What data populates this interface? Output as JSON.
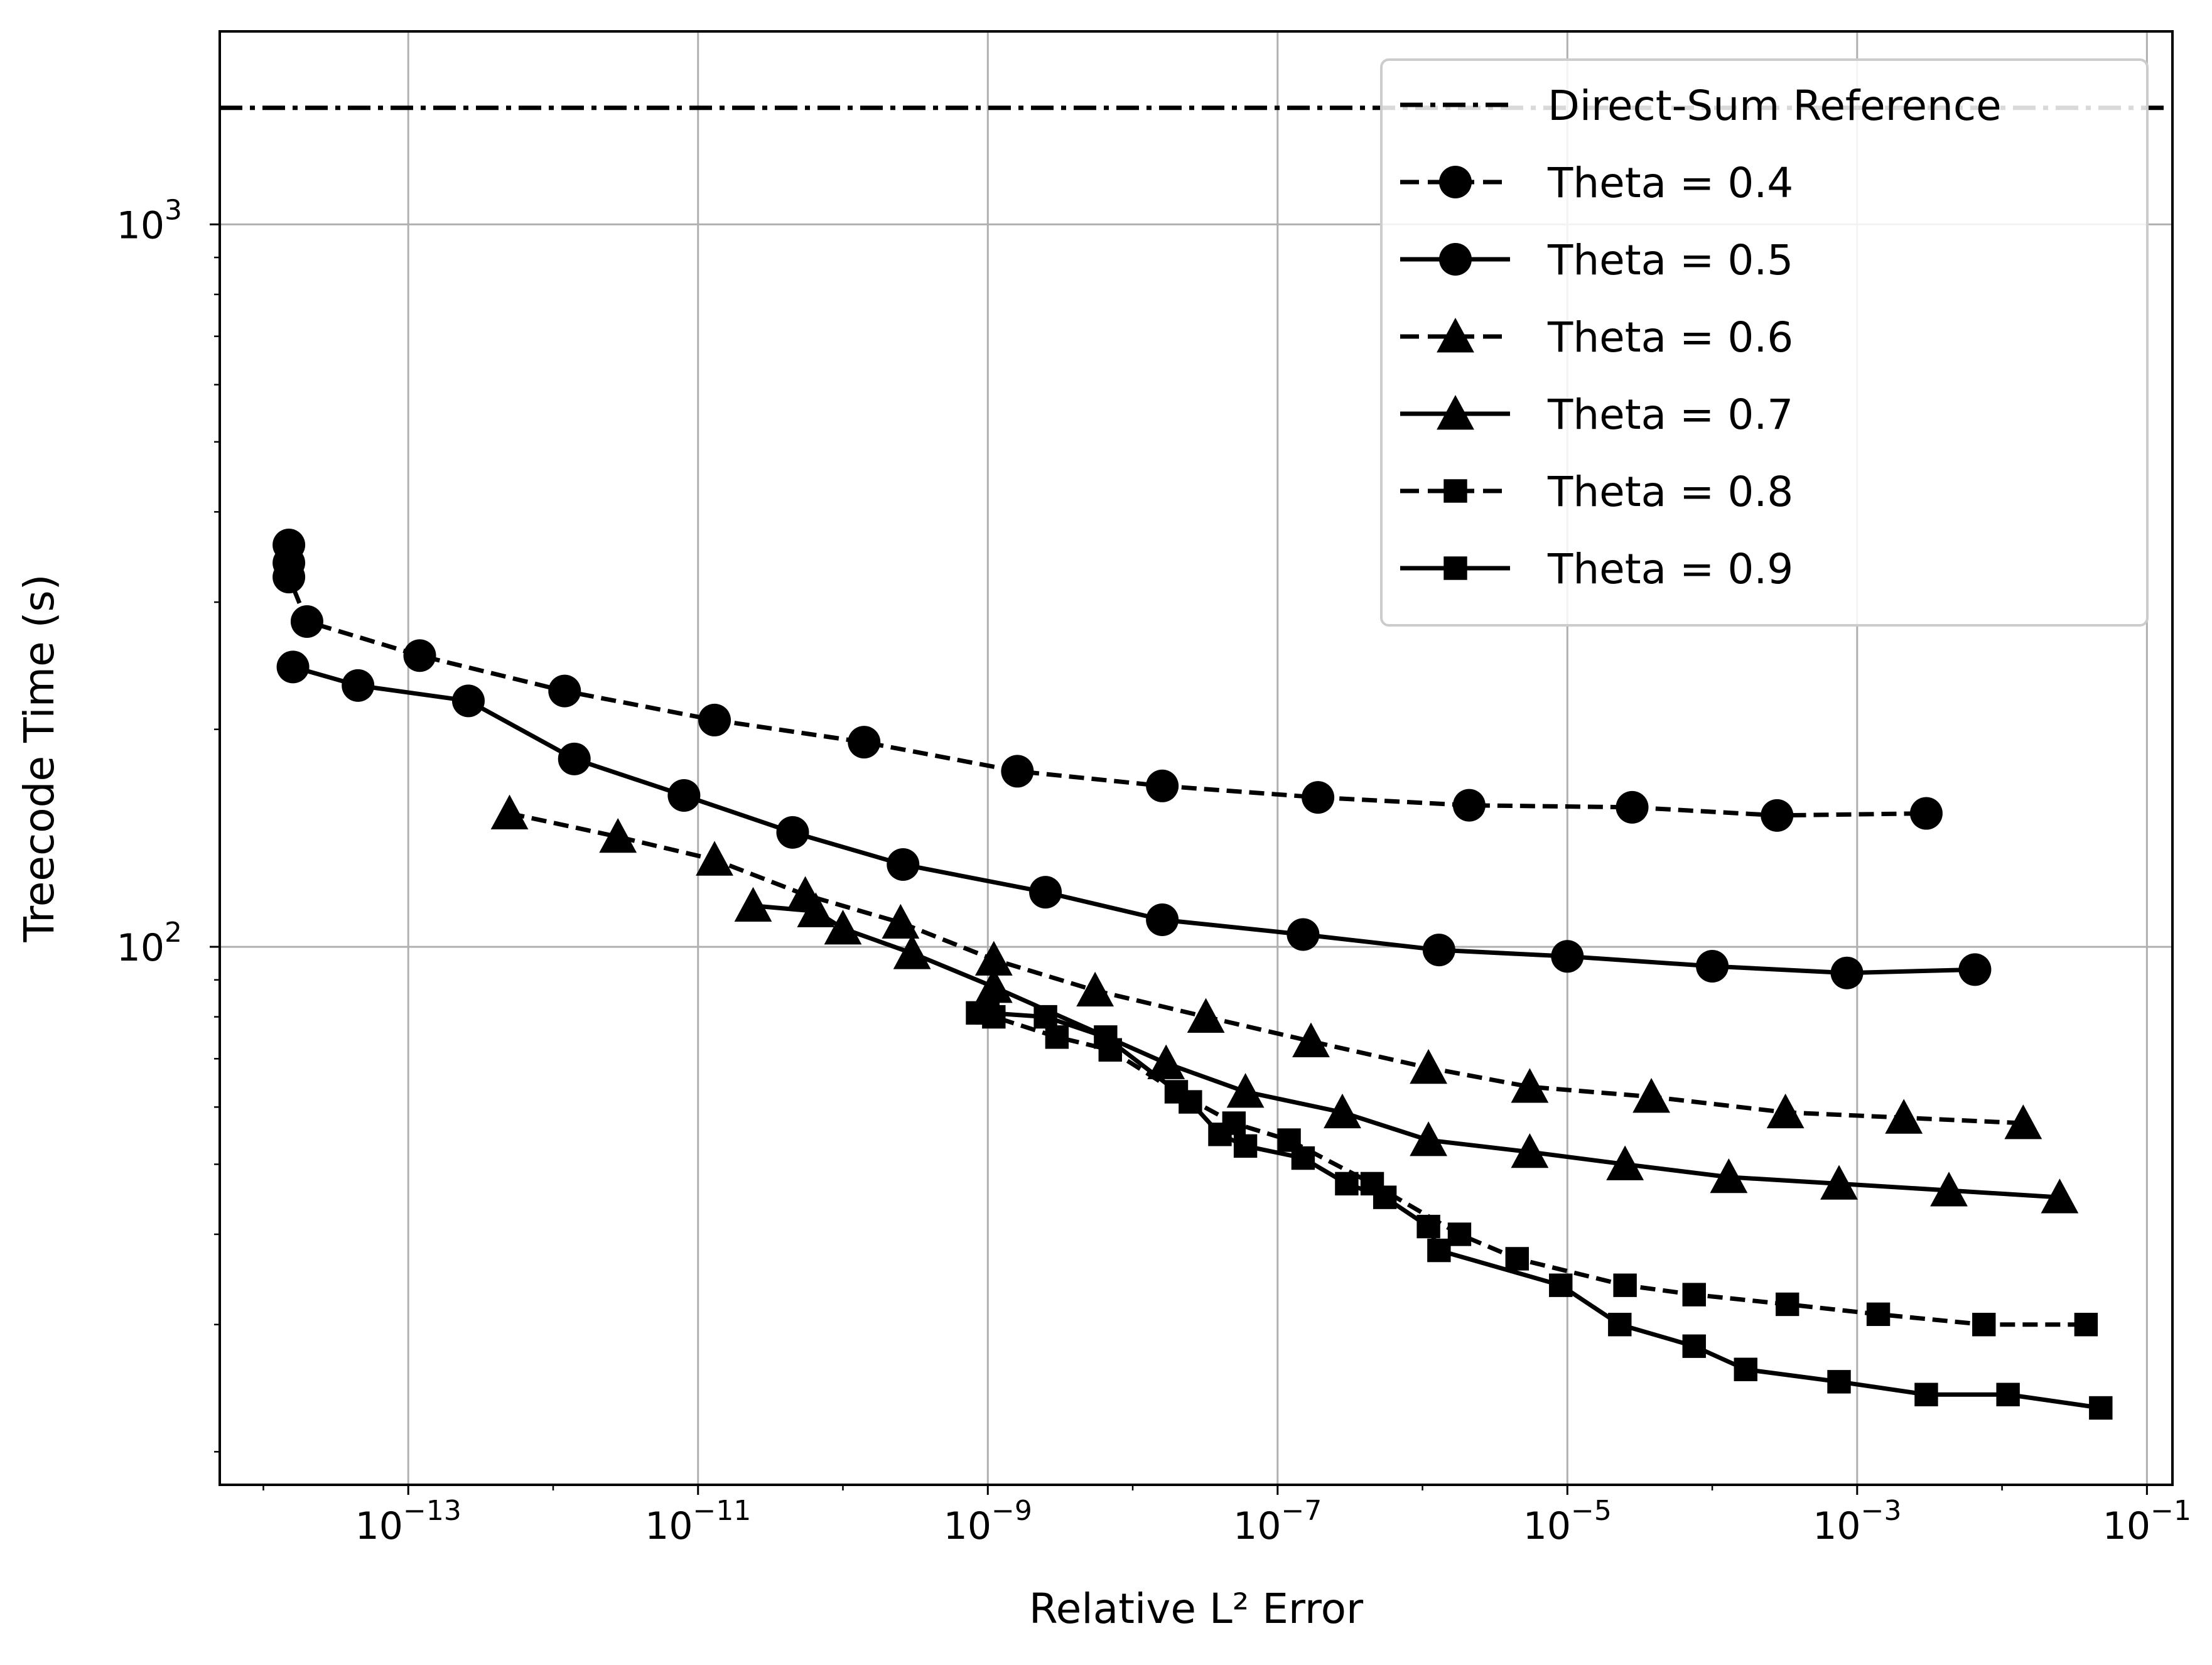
{
  "chart_data": {
    "type": "line",
    "x_scale": "log",
    "y_scale": "log",
    "xlabel": "Relative L² Error",
    "ylabel": "Treecode Time (s)",
    "xlim": [
      5e-15,
      0.15
    ],
    "ylim": [
      18,
      1850
    ],
    "grid": true,
    "legend_placement": "upper right",
    "x_tick_labels": [
      {
        "value": 1e-13,
        "base": "10",
        "exp": "−13"
      },
      {
        "value": 1e-11,
        "base": "10",
        "exp": "−11"
      },
      {
        "value": 1e-09,
        "base": "10",
        "exp": "−9"
      },
      {
        "value": 1e-07,
        "base": "10",
        "exp": "−7"
      },
      {
        "value": 1e-05,
        "base": "10",
        "exp": "−5"
      },
      {
        "value": 0.001,
        "base": "10",
        "exp": "−3"
      },
      {
        "value": 0.1,
        "base": "10",
        "exp": "−1"
      }
    ],
    "y_tick_labels": [
      {
        "value": 100,
        "base": "10",
        "exp": "2"
      },
      {
        "value": 1000,
        "base": "10",
        "exp": "3"
      }
    ],
    "reference": {
      "name": "Direct-Sum Reference",
      "value": 1450,
      "style": "dashdot"
    },
    "series": [
      {
        "name": "Theta = 0.4",
        "marker": "circle",
        "linestyle": "dashed",
        "x": [
          1.5e-14,
          1.5e-14,
          1.5e-14,
          2e-14,
          1.2e-13,
          1.2e-12,
          1.3e-11,
          1.4e-10,
          1.6e-09,
          1.6e-08,
          1.9e-07,
          2.1e-06,
          2.8e-05,
          0.00028,
          0.003
        ],
        "y": [
          360,
          340,
          325,
          282,
          253,
          226,
          206,
          192,
          175,
          167,
          161,
          157,
          156,
          152,
          153
        ]
      },
      {
        "name": "Theta = 0.5",
        "marker": "circle",
        "linestyle": "solid",
        "x": [
          1.6e-14,
          4.5e-14,
          2.6e-13,
          1.4e-12,
          8e-12,
          4.5e-11,
          2.6e-10,
          2.5e-09,
          1.6e-08,
          1.5e-07,
          1.3e-06,
          1e-05,
          0.0001,
          0.00085,
          0.0065
        ],
        "y": [
          244,
          230,
          219,
          182,
          162,
          144,
          130,
          119,
          109,
          104,
          99,
          97,
          94,
          92,
          93
        ]
      },
      {
        "name": "Theta = 0.6",
        "marker": "triangle",
        "linestyle": "dashed",
        "x": [
          5e-13,
          2.8e-12,
          1.3e-11,
          5.5e-11,
          2.5e-10,
          1.1e-09,
          5.5e-09,
          3.2e-08,
          1.7e-07,
          1.1e-06,
          5.5e-06,
          3.8e-05,
          0.00032,
          0.0021,
          0.014
        ],
        "y": [
          153,
          142,
          132,
          118,
          108,
          96,
          87,
          80,
          74,
          68,
          64,
          62,
          59,
          58,
          57
        ]
      },
      {
        "name": "Theta = 0.7",
        "marker": "triangle",
        "linestyle": "solid",
        "x": [
          2.4e-11,
          6.5e-11,
          1e-10,
          3e-10,
          1.1e-09,
          1.7e-08,
          6e-08,
          2.8e-07,
          1.1e-06,
          5.5e-06,
          2.5e-05,
          0.00013,
          0.00075,
          0.0043,
          0.025
        ],
        "y": [
          114,
          112,
          106,
          98,
          88,
          69,
          63,
          59,
          54,
          52,
          50,
          48,
          47,
          46,
          45
        ]
      },
      {
        "name": "Theta = 0.8",
        "marker": "square",
        "linestyle": "dashed",
        "x": [
          8.5e-10,
          1.1e-09,
          3e-09,
          7e-09,
          2e-08,
          5e-08,
          1.2e-07,
          4.5e-07,
          1.8e-06,
          4.5e-06,
          2.5e-05,
          7.5e-05,
          0.00033,
          0.0014,
          0.0075,
          0.038
        ],
        "y": [
          81,
          80,
          75,
          72,
          63,
          57,
          54,
          47,
          40,
          37,
          34,
          33,
          32,
          31,
          30,
          30
        ]
      },
      {
        "name": "Theta = 0.9",
        "marker": "square",
        "linestyle": "solid",
        "x": [
          1e-09,
          2.5e-09,
          6.5e-09,
          2.5e-08,
          4e-08,
          6e-08,
          1.5e-07,
          3e-07,
          5.5e-07,
          1.1e-06,
          1.3e-06,
          9e-06,
          2.3e-05,
          7.5e-05,
          0.00017,
          0.00075,
          0.003,
          0.011,
          0.048
        ],
        "y": [
          81,
          80,
          75,
          61,
          55,
          53,
          51,
          47,
          45,
          41,
          38,
          34,
          30,
          28,
          26,
          25,
          24,
          24,
          23
        ]
      }
    ]
  }
}
